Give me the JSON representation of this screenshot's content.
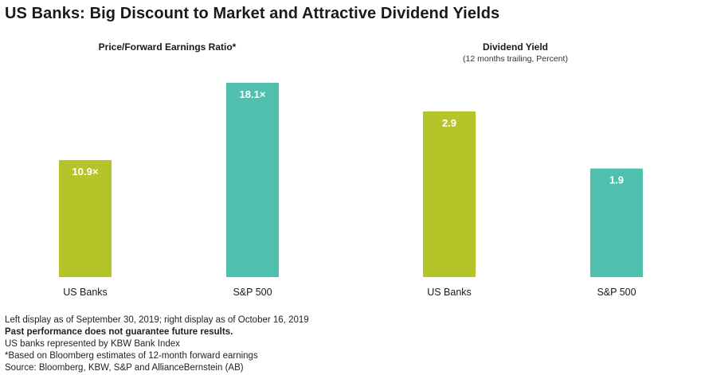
{
  "title": "US Banks: Big Discount to Market and Attractive Dividend Yields",
  "chart_data": [
    {
      "type": "bar",
      "title": "Price/Forward Earnings Ratio*",
      "subtitle": "",
      "categories": [
        "US Banks",
        "S&P 500"
      ],
      "values": [
        10.9,
        18.1
      ],
      "value_labels": [
        "10.9×",
        "18.1×"
      ],
      "colors": [
        "#b5c428",
        "#4fc0ad"
      ],
      "ylim": [
        0,
        18.1
      ],
      "xlabel": "",
      "ylabel": "",
      "grid": false
    },
    {
      "type": "bar",
      "title": "Dividend Yield",
      "subtitle": "(12 months trailing, Percent)",
      "categories": [
        "US Banks",
        "S&P 500"
      ],
      "values": [
        2.9,
        1.9
      ],
      "value_labels": [
        "2.9",
        "1.9"
      ],
      "colors": [
        "#b5c428",
        "#4fc0ad"
      ],
      "ylim": [
        0,
        3.4
      ],
      "xlabel": "",
      "ylabel": "",
      "grid": false
    }
  ],
  "footnotes": {
    "line1": "Left display as of September 30, 2019; right display as of October 16, 2019",
    "line2": "Past performance does not guarantee future results.",
    "line3": "US banks represented by KBW Bank Index",
    "line4": "*Based on Bloomberg estimates of 12-month forward earnings",
    "line5": "Source: Bloomberg, KBW, S&P and AllianceBernstein (AB)"
  }
}
